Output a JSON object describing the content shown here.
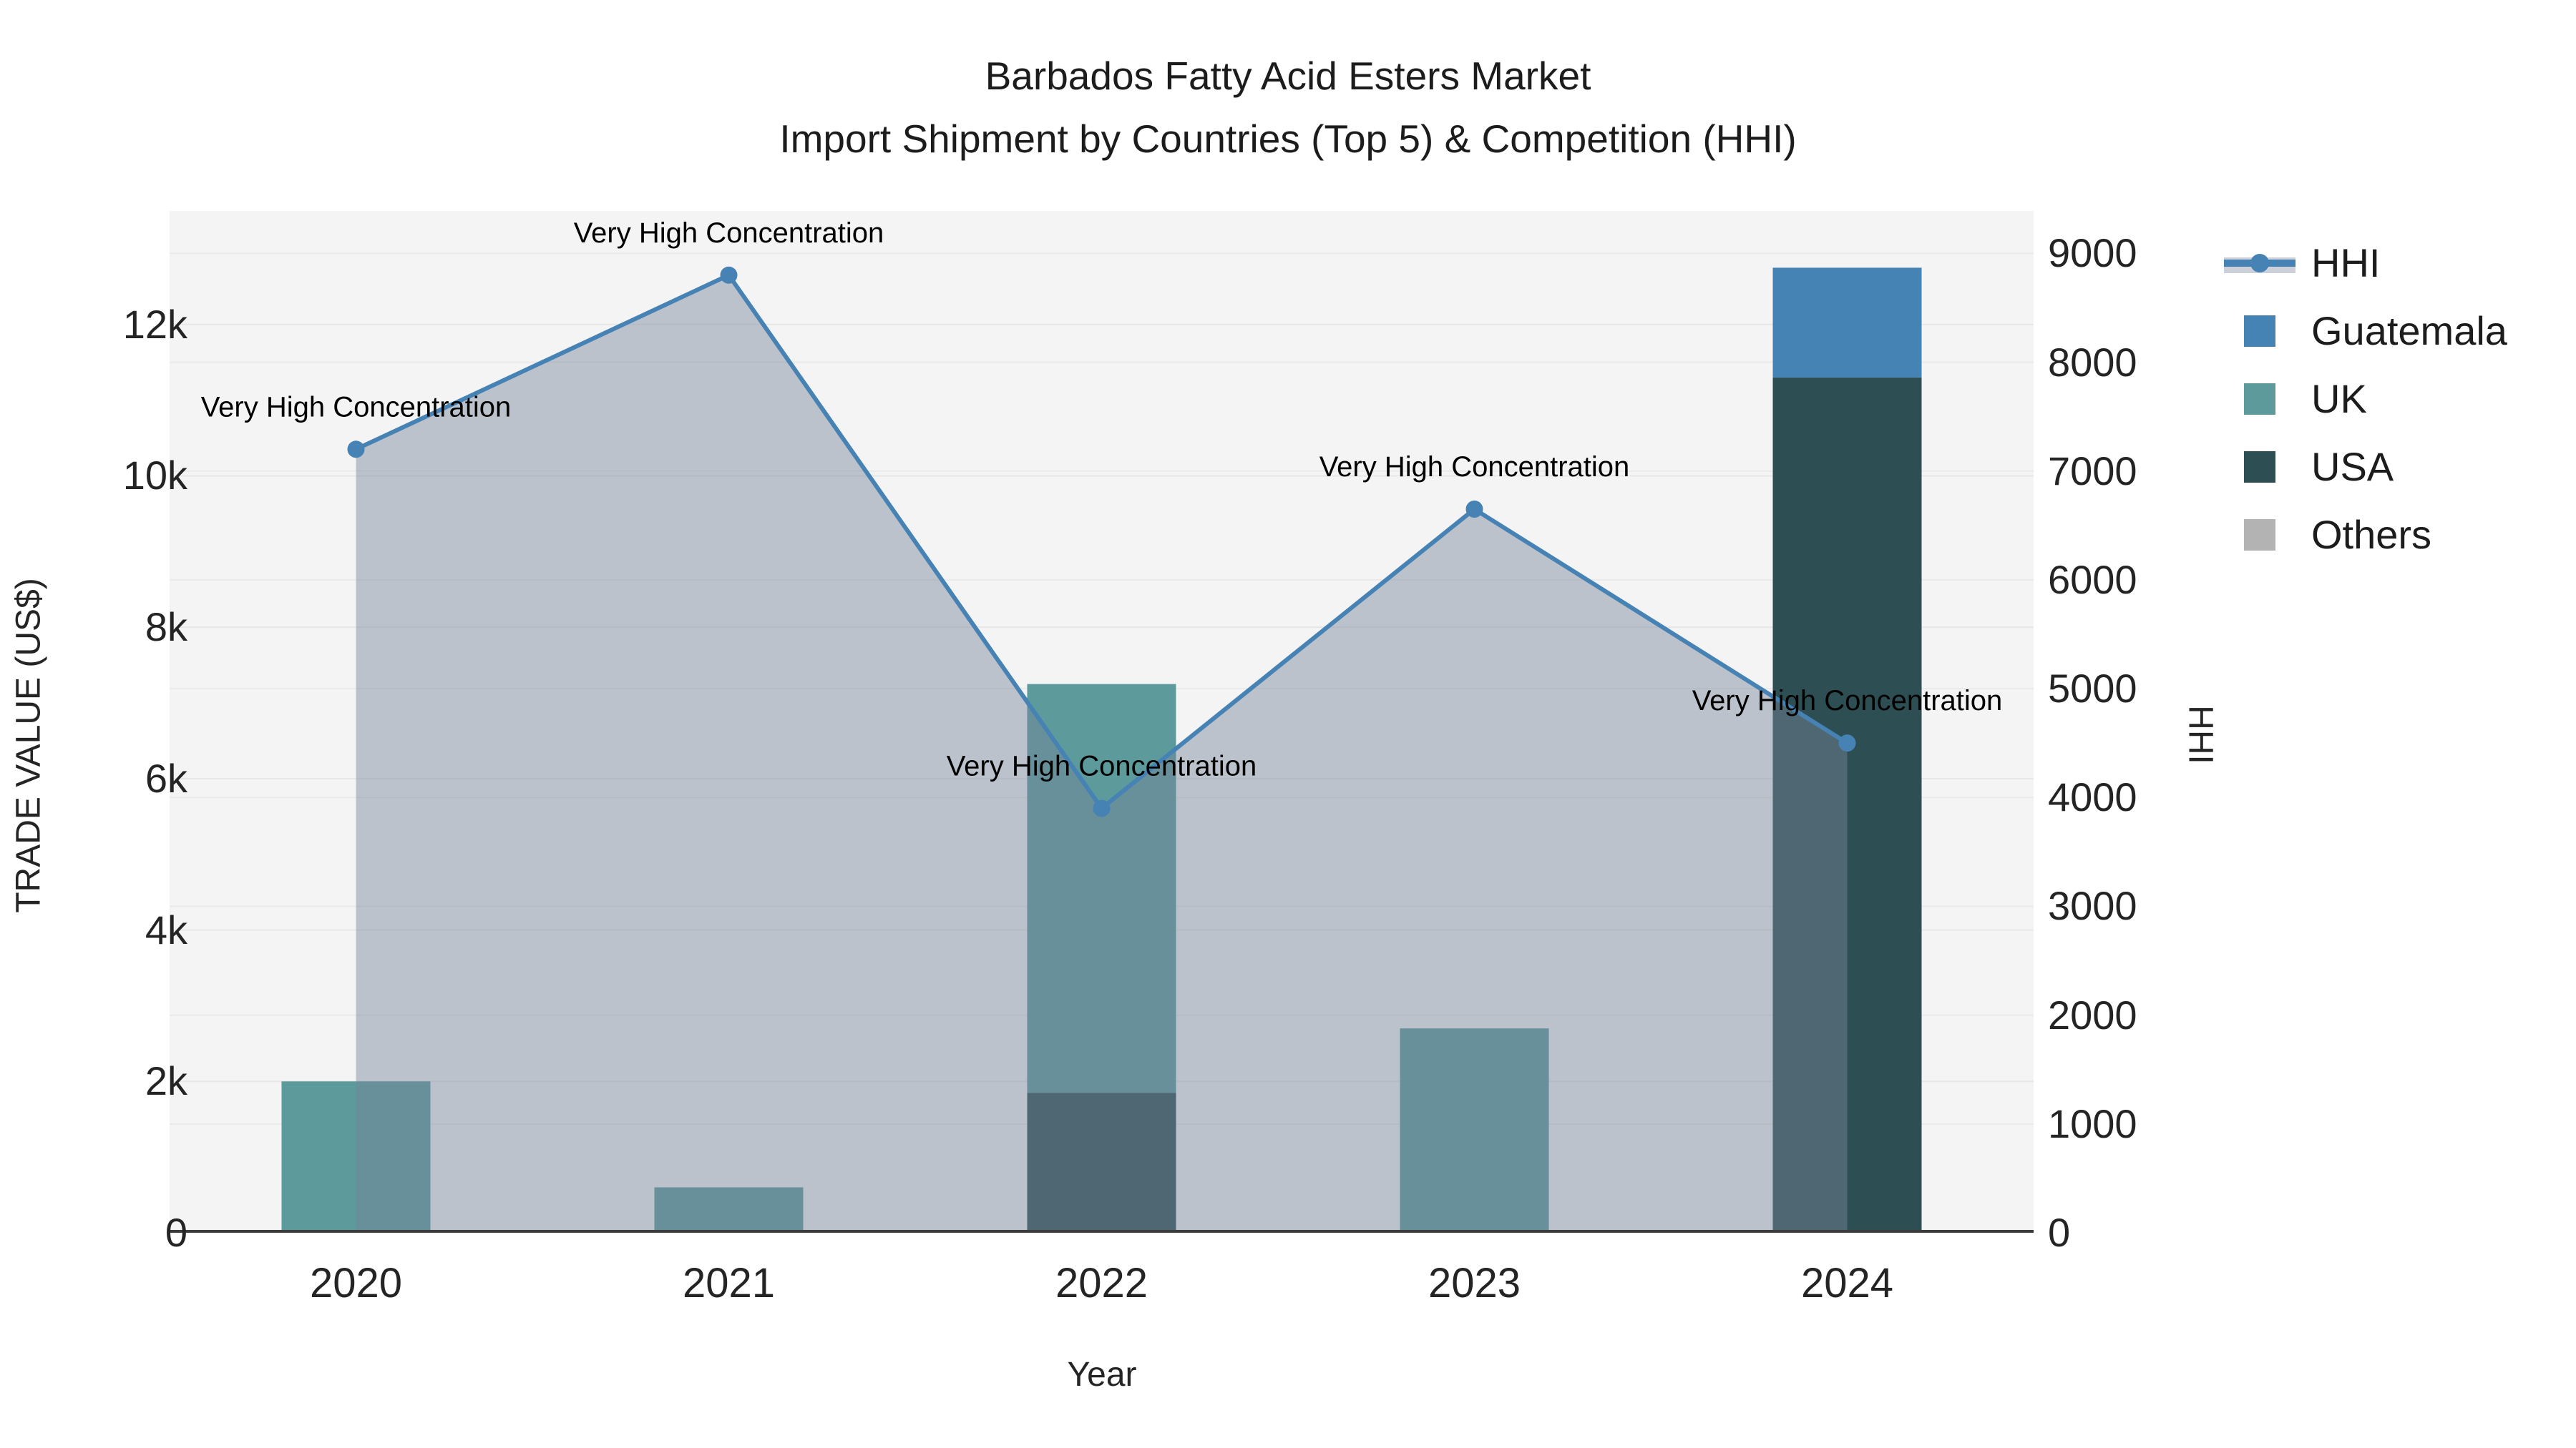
{
  "title": {
    "line1": "Barbados Fatty Acid Esters Market",
    "line2": "Import Shipment by Countries (Top 5) & Competition (HHI)"
  },
  "axes": {
    "x_title": "Year",
    "y_left_title": "TRADE VALUE (US$)",
    "y_right_title": "HHI",
    "y_left_ticks": [
      {
        "value": 0,
        "label": "0"
      },
      {
        "value": 2000,
        "label": "2k"
      },
      {
        "value": 4000,
        "label": "4k"
      },
      {
        "value": 6000,
        "label": "6k"
      },
      {
        "value": 8000,
        "label": "8k"
      },
      {
        "value": 10000,
        "label": "10k"
      },
      {
        "value": 12000,
        "label": "12k"
      }
    ],
    "y_right_ticks": [
      {
        "value": 0,
        "label": "0"
      },
      {
        "value": 1000,
        "label": "1000"
      },
      {
        "value": 2000,
        "label": "2000"
      },
      {
        "value": 3000,
        "label": "3000"
      },
      {
        "value": 4000,
        "label": "4000"
      },
      {
        "value": 5000,
        "label": "5000"
      },
      {
        "value": 6000,
        "label": "6000"
      },
      {
        "value": 7000,
        "label": "7000"
      },
      {
        "value": 8000,
        "label": "8000"
      },
      {
        "value": 9000,
        "label": "9000"
      }
    ]
  },
  "legend": [
    {
      "label": "HHI",
      "type": "line",
      "color": "#4682b4"
    },
    {
      "label": "Guatemala",
      "type": "square",
      "color": "#4583b5"
    },
    {
      "label": "UK",
      "type": "square",
      "color": "#5c9a9b"
    },
    {
      "label": "USA",
      "type": "square",
      "color": "#2d4f53"
    },
    {
      "label": "Others",
      "type": "square",
      "color": "#b3b3b3"
    }
  ],
  "chart_data": {
    "type": "combo (stacked bar + line with area)",
    "categories": [
      "2020",
      "2021",
      "2022",
      "2023",
      "2024"
    ],
    "bar_axis": "left",
    "ylim_left": [
      0,
      13500
    ],
    "ylim_right": [
      0,
      9390
    ],
    "grid": "faint horizontal lines for both axes",
    "legend_position": "right outside",
    "bar_series": [
      {
        "name": "Guatemala",
        "color": "#4583b5",
        "values": [
          0,
          0,
          0,
          0,
          1450
        ]
      },
      {
        "name": "UK",
        "color": "#5c9a9b",
        "values": [
          2000,
          600,
          5400,
          2700,
          0
        ]
      },
      {
        "name": "USA",
        "color": "#2d4f53",
        "values": [
          0,
          0,
          1850,
          0,
          11300
        ]
      },
      {
        "name": "Others",
        "color": "#b3b3b3",
        "values": [
          0,
          0,
          0,
          0,
          0
        ]
      }
    ],
    "stack_order": [
      "USA",
      "UK",
      "Guatemala",
      "Others"
    ],
    "line_series": {
      "name": "HHI",
      "axis": "right",
      "color": "#4682b4",
      "area_fill": "rgba(119,133,153,0.45)",
      "values": [
        7200,
        8800,
        3900,
        6650,
        4500
      ]
    },
    "annotations": [
      {
        "category": "2020",
        "text": "Very High Concentration"
      },
      {
        "category": "2021",
        "text": "Very High Concentration"
      },
      {
        "category": "2022",
        "text": "Very High Concentration"
      },
      {
        "category": "2023",
        "text": "Very High Concentration"
      },
      {
        "category": "2024",
        "text": "Very High Concentration"
      }
    ]
  }
}
